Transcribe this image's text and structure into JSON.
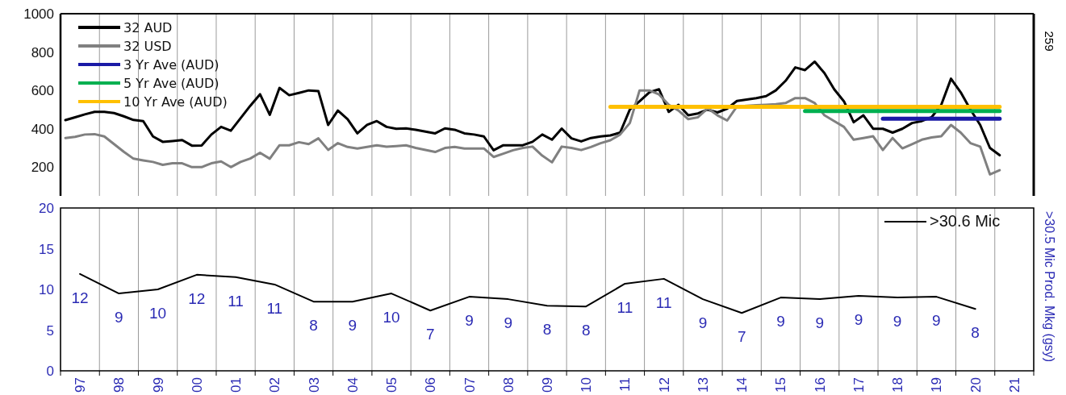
{
  "chart_data": [
    {
      "type": "line",
      "categories": [
        null,
        null,
        null,
        null,
        null,
        null,
        null,
        null,
        null,
        null,
        null,
        null,
        null,
        null,
        null,
        null,
        null,
        null,
        null,
        null,
        null,
        null,
        null,
        null,
        null,
        null,
        null,
        null,
        null,
        null,
        null,
        null,
        null,
        null,
        null,
        null,
        null,
        null,
        null,
        null,
        null,
        null,
        null,
        null,
        null,
        null,
        null,
        null,
        null,
        null,
        null,
        null,
        null,
        null,
        null,
        null,
        null,
        null,
        null,
        null,
        null,
        null,
        null,
        null,
        null,
        null,
        null,
        null,
        null,
        null,
        null,
        null,
        null,
        null,
        null,
        null,
        null,
        null,
        null,
        null,
        null,
        null,
        null,
        null,
        null,
        null,
        null,
        null,
        null,
        null,
        null,
        null,
        null,
        null,
        null,
        null,
        null,
        null,
        null,
        null
      ],
      "ylim": [
        50,
        1000
      ],
      "yticks": [
        200,
        400,
        600,
        800,
        1000
      ],
      "grid": "x",
      "legend": "top left",
      "tick_labels": "y",
      "annotations": [
        "259"
      ],
      "series": [
        {
          "name": "32 AUD",
          "color": "#000000",
          "values": [
            445,
            460,
            475,
            488,
            488,
            482,
            465,
            446,
            440,
            360,
            332,
            336,
            341,
            312,
            313,
            370,
            410,
            390,
            455,
            520,
            580,
            473,
            613,
            575,
            587,
            600,
            596,
            420,
            495,
            450,
            376,
            420,
            440,
            410,
            400,
            402,
            395,
            385,
            376,
            402,
            395,
            376,
            370,
            360,
            288,
            314,
            314,
            314,
            332,
            370,
            343,
            401,
            350,
            334,
            352,
            360,
            365,
            380,
            500,
            543,
            590,
            606,
            488,
            525,
            470,
            480,
            500,
            485,
            505,
            545,
            552,
            560,
            570,
            600,
            650,
            720,
            706,
            750,
            690,
            606,
            543,
            434,
            470,
            400,
            400,
            380,
            400,
            430,
            440,
            460,
            525,
            661,
            590,
            500,
            420,
            300,
            262,
            null,
            null,
            null
          ]
        },
        {
          "name": "32 USD",
          "color": "#808080",
          "values": [
            352,
            358,
            370,
            372,
            360,
            320,
            280,
            244,
            235,
            227,
            212,
            220,
            220,
            200,
            200,
            220,
            230,
            200,
            227,
            245,
            275,
            244,
            314,
            314,
            330,
            320,
            350,
            290,
            325,
            305,
            297,
            305,
            314,
            306,
            310,
            314,
            300,
            290,
            279,
            300,
            305,
            297,
            297,
            297,
            253,
            270,
            288,
            300,
            307,
            260,
            225,
            307,
            300,
            289,
            305,
            325,
            340,
            370,
            430,
            600,
            600,
            579,
            525,
            495,
            450,
            460,
            507,
            470,
            443,
            516,
            520,
            523,
            525,
            528,
            534,
            560,
            560,
            534,
            470,
            440,
            410,
            343,
            352,
            361,
            289,
            352,
            298,
            320,
            343,
            355,
            361,
            420,
            380,
            325,
            307,
            162,
            184,
            null,
            null,
            null
          ]
        },
        {
          "name": "3 Yr Ave (AUD)",
          "color": "#1a1aa6",
          "values": [
            null,
            null,
            null,
            null,
            null,
            null,
            null,
            null,
            null,
            null,
            null,
            null,
            null,
            null,
            null,
            null,
            null,
            null,
            null,
            null,
            null,
            null,
            null,
            null,
            null,
            null,
            null,
            null,
            null,
            null,
            null,
            null,
            null,
            null,
            null,
            null,
            null,
            null,
            null,
            null,
            null,
            null,
            null,
            null,
            null,
            null,
            null,
            null,
            null,
            null,
            null,
            null,
            null,
            null,
            null,
            null,
            null,
            null,
            null,
            null,
            null,
            null,
            null,
            null,
            null,
            null,
            null,
            null,
            null,
            null,
            null,
            null,
            null,
            null,
            null,
            null,
            null,
            null,
            null,
            null,
            null,
            null,
            null,
            null,
            452,
            452,
            452,
            452,
            452,
            452,
            452,
            452,
            452,
            452,
            452,
            452,
            452,
            null,
            null,
            null
          ]
        },
        {
          "name": "5 Yr Ave (AUD)",
          "color": "#00b050",
          "values": [
            null,
            null,
            null,
            null,
            null,
            null,
            null,
            null,
            null,
            null,
            null,
            null,
            null,
            null,
            null,
            null,
            null,
            null,
            null,
            null,
            null,
            null,
            null,
            null,
            null,
            null,
            null,
            null,
            null,
            null,
            null,
            null,
            null,
            null,
            null,
            null,
            null,
            null,
            null,
            null,
            null,
            null,
            null,
            null,
            null,
            null,
            null,
            null,
            null,
            null,
            null,
            null,
            null,
            null,
            null,
            null,
            null,
            null,
            null,
            null,
            null,
            null,
            null,
            null,
            null,
            null,
            null,
            null,
            null,
            null,
            null,
            null,
            null,
            null,
            null,
            null,
            492,
            492,
            492,
            492,
            492,
            492,
            492,
            492,
            492,
            492,
            492,
            492,
            492,
            492,
            492,
            492,
            492,
            492,
            492,
            492,
            492,
            null,
            null,
            null
          ]
        },
        {
          "name": "10 Yr Ave (AUD)",
          "color": "#ffc000",
          "values": [
            null,
            null,
            null,
            null,
            null,
            null,
            null,
            null,
            null,
            null,
            null,
            null,
            null,
            null,
            null,
            null,
            null,
            null,
            null,
            null,
            null,
            null,
            null,
            null,
            null,
            null,
            null,
            null,
            null,
            null,
            null,
            null,
            null,
            null,
            null,
            null,
            null,
            null,
            null,
            null,
            null,
            null,
            null,
            null,
            null,
            null,
            null,
            null,
            null,
            null,
            null,
            null,
            null,
            null,
            null,
            null,
            514,
            514,
            514,
            514,
            514,
            514,
            514,
            514,
            514,
            514,
            514,
            514,
            514,
            514,
            514,
            514,
            514,
            514,
            514,
            514,
            514,
            514,
            514,
            514,
            514,
            514,
            514,
            514,
            514,
            514,
            514,
            514,
            514,
            514,
            514,
            514,
            514,
            514,
            514,
            514,
            514,
            null,
            null,
            null
          ]
        }
      ]
    },
    {
      "type": "line",
      "categories": [
        "97",
        "98",
        "99",
        "00",
        "01",
        "02",
        "03",
        "04",
        "05",
        "06",
        "07",
        "08",
        "09",
        "10",
        "11",
        "12",
        "13",
        "14",
        "15",
        "16",
        "17",
        "18",
        "19",
        "20",
        "21"
      ],
      "ylim": [
        0,
        20
      ],
      "yticks": [
        0,
        5,
        10,
        15,
        20
      ],
      "ylabel": ">30.5 Mic Prod. Mkg (gsy)",
      "grid": "x",
      "legend": "top right",
      "series": [
        {
          "name": ">30.6 Mic",
          "color": "#000000",
          "values": [
            11.9,
            9.5,
            10.0,
            11.8,
            11.5,
            10.6,
            8.5,
            8.5,
            9.5,
            7.4,
            9.1,
            8.8,
            8.0,
            7.9,
            10.7,
            11.3,
            8.8,
            7.1,
            9.0,
            8.8,
            9.2,
            9.0,
            9.1,
            7.6,
            null
          ],
          "value_labels": [
            "12",
            "9",
            "10",
            "12",
            "11",
            "11",
            "8",
            "9",
            "10",
            "7",
            "9",
            "9",
            "8",
            "8",
            "11",
            "11",
            "9",
            "7",
            "9",
            "9",
            "9",
            "9",
            "9",
            "8",
            null
          ]
        }
      ]
    }
  ]
}
